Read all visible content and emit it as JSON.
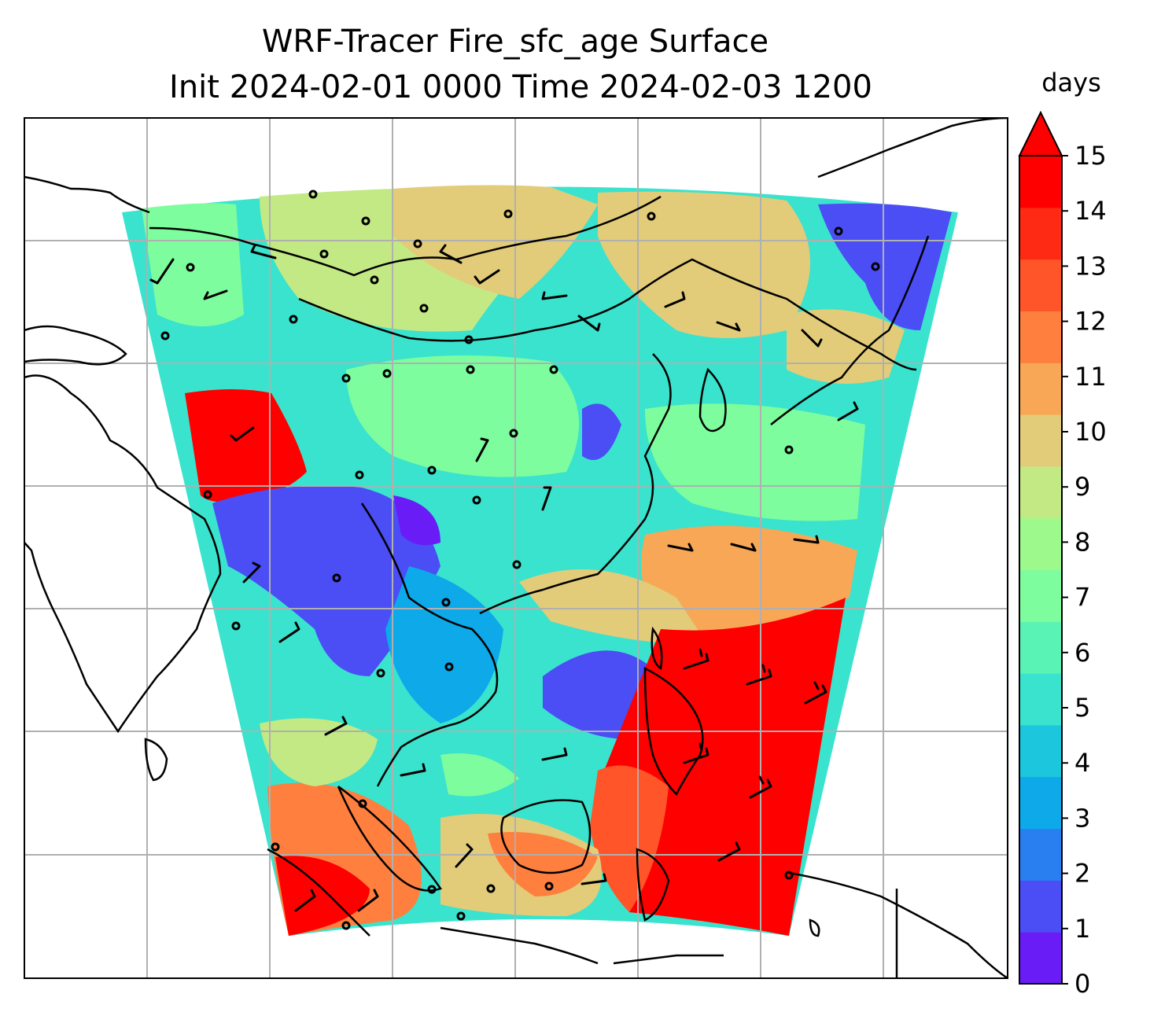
{
  "title": {
    "line1": "WRF-Tracer Fire_sfc_age Surface",
    "line2": "Init 2024-02-01 0000 Time 2024-02-03 1200"
  },
  "colorbar": {
    "units": "days",
    "extend": "max",
    "ticks": [
      "0",
      "1",
      "2",
      "3",
      "4",
      "5",
      "6",
      "7",
      "8",
      "9",
      "10",
      "11",
      "12",
      "13",
      "14",
      "15"
    ],
    "colors": [
      "#6a1cf7",
      "#4b4df5",
      "#2a7ff0",
      "#0da9e8",
      "#1cc6dc",
      "#3ae3cd",
      "#5af3b6",
      "#7efd9e",
      "#9ef98c",
      "#c3e985",
      "#e2cc79",
      "#f7a756",
      "#ff7f3e",
      "#ff5528",
      "#ff2a14",
      "#ff0000"
    ]
  },
  "map": {
    "grid": true,
    "coastlines": true,
    "barbs": "surface wind barbs",
    "field_description": "Fire tracer age at surface, values 0-15+ days"
  }
}
